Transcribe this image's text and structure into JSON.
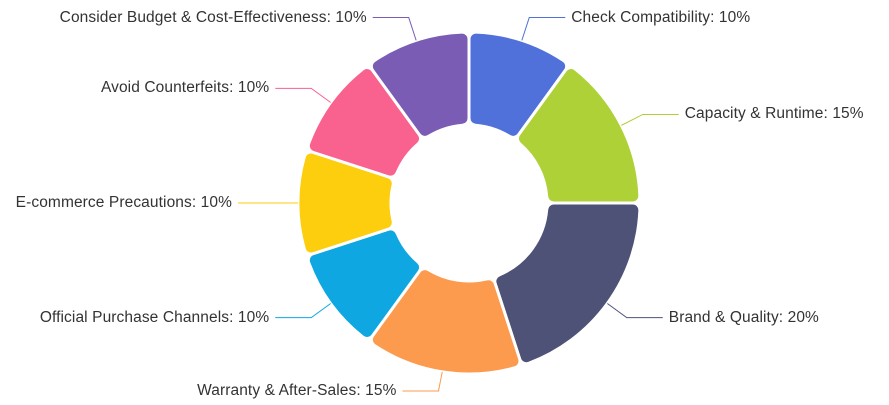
{
  "chart_data": {
    "type": "pie",
    "subtype": "donut",
    "title": "",
    "unit": "%",
    "label_format": "{name}: {value}%",
    "direction": "clockwise",
    "start_angle_deg": 0,
    "legend": "none",
    "background_color": "#ffffff",
    "label_text_color": "#333333",
    "slice_border_color": "#ffffff",
    "series": [
      {
        "label": "Check Compatibility",
        "value": 10,
        "color": "#5071d9",
        "label_text": "Check Compatibility: 10%"
      },
      {
        "label": "Capacity & Runtime",
        "value": 15,
        "color": "#aed138",
        "label_text": "Capacity & Runtime: 15%"
      },
      {
        "label": "Brand & Quality",
        "value": 20,
        "color": "#4e5277",
        "label_text": "Brand & Quality: 20%"
      },
      {
        "label": "Warranty & After-Sales",
        "value": 15,
        "color": "#fc9a4e",
        "label_text": "Warranty & After-Sales: 15%"
      },
      {
        "label": "Official Purchase Channels",
        "value": 10,
        "color": "#0ea7e2",
        "label_text": "Official Purchase Channels: 10%"
      },
      {
        "label": "E-commerce Precautions",
        "value": 10,
        "color": "#fdce0d",
        "label_text": "E-commerce Precautions: 10%"
      },
      {
        "label": "Avoid Counterfeits",
        "value": 10,
        "color": "#f9628e",
        "label_text": "Avoid Counterfeits: 10%"
      },
      {
        "label": "Consider Budget & Cost-Effectiveness",
        "value": 10,
        "color": "#7a5cb5",
        "label_text": "Consider Budget & Cost-Effectiveness: 10%"
      }
    ]
  }
}
